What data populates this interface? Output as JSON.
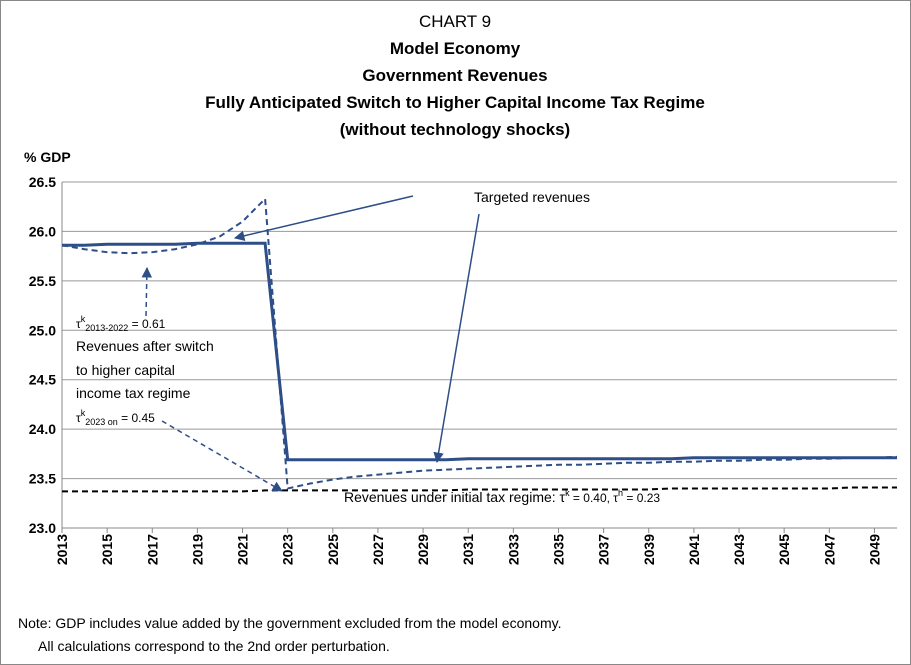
{
  "chart_data": {
    "type": "line",
    "title": [
      "CHART 9",
      "Model Economy",
      "Government Revenues",
      "Fully Anticipated Switch to Higher Capital Income Tax Regime",
      "(without technology shocks)"
    ],
    "y_label": "% GDP",
    "x": [
      2013,
      2014,
      2015,
      2016,
      2017,
      2018,
      2019,
      2020,
      2021,
      2022,
      2023,
      2024,
      2025,
      2026,
      2027,
      2028,
      2029,
      2030,
      2031,
      2032,
      2033,
      2034,
      2035,
      2036,
      2037,
      2038,
      2039,
      2040,
      2041,
      2042,
      2043,
      2044,
      2045,
      2046,
      2047,
      2048,
      2049,
      2050
    ],
    "series": [
      {
        "color": "#2e4e87",
        "dashed": false,
        "values": [
          25.86,
          25.86,
          25.87,
          25.87,
          25.87,
          25.87,
          25.88,
          25.88,
          25.88,
          25.88,
          23.69,
          23.69,
          23.69,
          23.69,
          23.69,
          23.69,
          23.69,
          23.69,
          23.7,
          23.7,
          23.7,
          23.7,
          23.7,
          23.7,
          23.7,
          23.7,
          23.7,
          23.7,
          23.71,
          23.71,
          23.71,
          23.71,
          23.71,
          23.71,
          23.71,
          23.71,
          23.71,
          23.71
        ]
      },
      {
        "color": "#2e4e87",
        "dashed": true,
        "values": [
          25.86,
          25.82,
          25.79,
          25.78,
          25.79,
          25.82,
          25.87,
          25.95,
          26.1,
          26.33,
          23.4,
          23.45,
          23.49,
          23.52,
          23.54,
          23.56,
          23.58,
          23.59,
          23.6,
          23.61,
          23.62,
          23.63,
          23.64,
          23.64,
          23.65,
          23.66,
          23.66,
          23.67,
          23.67,
          23.68,
          23.68,
          23.69,
          23.69,
          23.7,
          23.7,
          23.71,
          23.71,
          23.72
        ]
      },
      {
        "color": "#000000",
        "dashed": true,
        "values": [
          23.37,
          23.37,
          23.37,
          23.37,
          23.37,
          23.37,
          23.37,
          23.37,
          23.37,
          23.38,
          23.38,
          23.38,
          23.38,
          23.38,
          23.38,
          23.38,
          23.38,
          23.38,
          23.39,
          23.39,
          23.39,
          23.39,
          23.39,
          23.39,
          23.39,
          23.39,
          23.39,
          23.4,
          23.4,
          23.4,
          23.4,
          23.4,
          23.4,
          23.4,
          23.4,
          23.41,
          23.41,
          23.41
        ]
      }
    ],
    "xlim": [
      2013,
      2050
    ],
    "xticks": [
      2013,
      2015,
      2017,
      2019,
      2021,
      2023,
      2025,
      2027,
      2029,
      2031,
      2033,
      2035,
      2037,
      2039,
      2041,
      2043,
      2045,
      2047,
      2049
    ],
    "ylim": [
      23,
      26.5
    ],
    "yticks": [
      {
        "value": 23,
        "label": "23.0"
      },
      23.5,
      {
        "value": 24,
        "label": "24.0"
      },
      24.5,
      {
        "value": 25,
        "label": "25.0"
      },
      25.5,
      {
        "value": 26,
        "label": "26.0"
      },
      26.5
    ],
    "grid": true,
    "annotations": {
      "targeted": "Targeted revenues",
      "tau_before": [
        "τ",
        "k",
        "2013-2022",
        " = 0.61"
      ],
      "after_switch": [
        "Revenues after switch",
        "to higher capital",
        "income tax regime"
      ],
      "tau_after": [
        "τ",
        "k",
        "2023 on",
        " = 0.45"
      ],
      "initial": [
        "Revenues under initial tax regime: τ",
        "k",
        " = 0.40, τ",
        "h",
        " = 0.23"
      ]
    },
    "notes": [
      "Note: GDP includes value added by the government excluded from the model economy.",
      "All calculations correspond to the 2nd order perturbation."
    ]
  }
}
